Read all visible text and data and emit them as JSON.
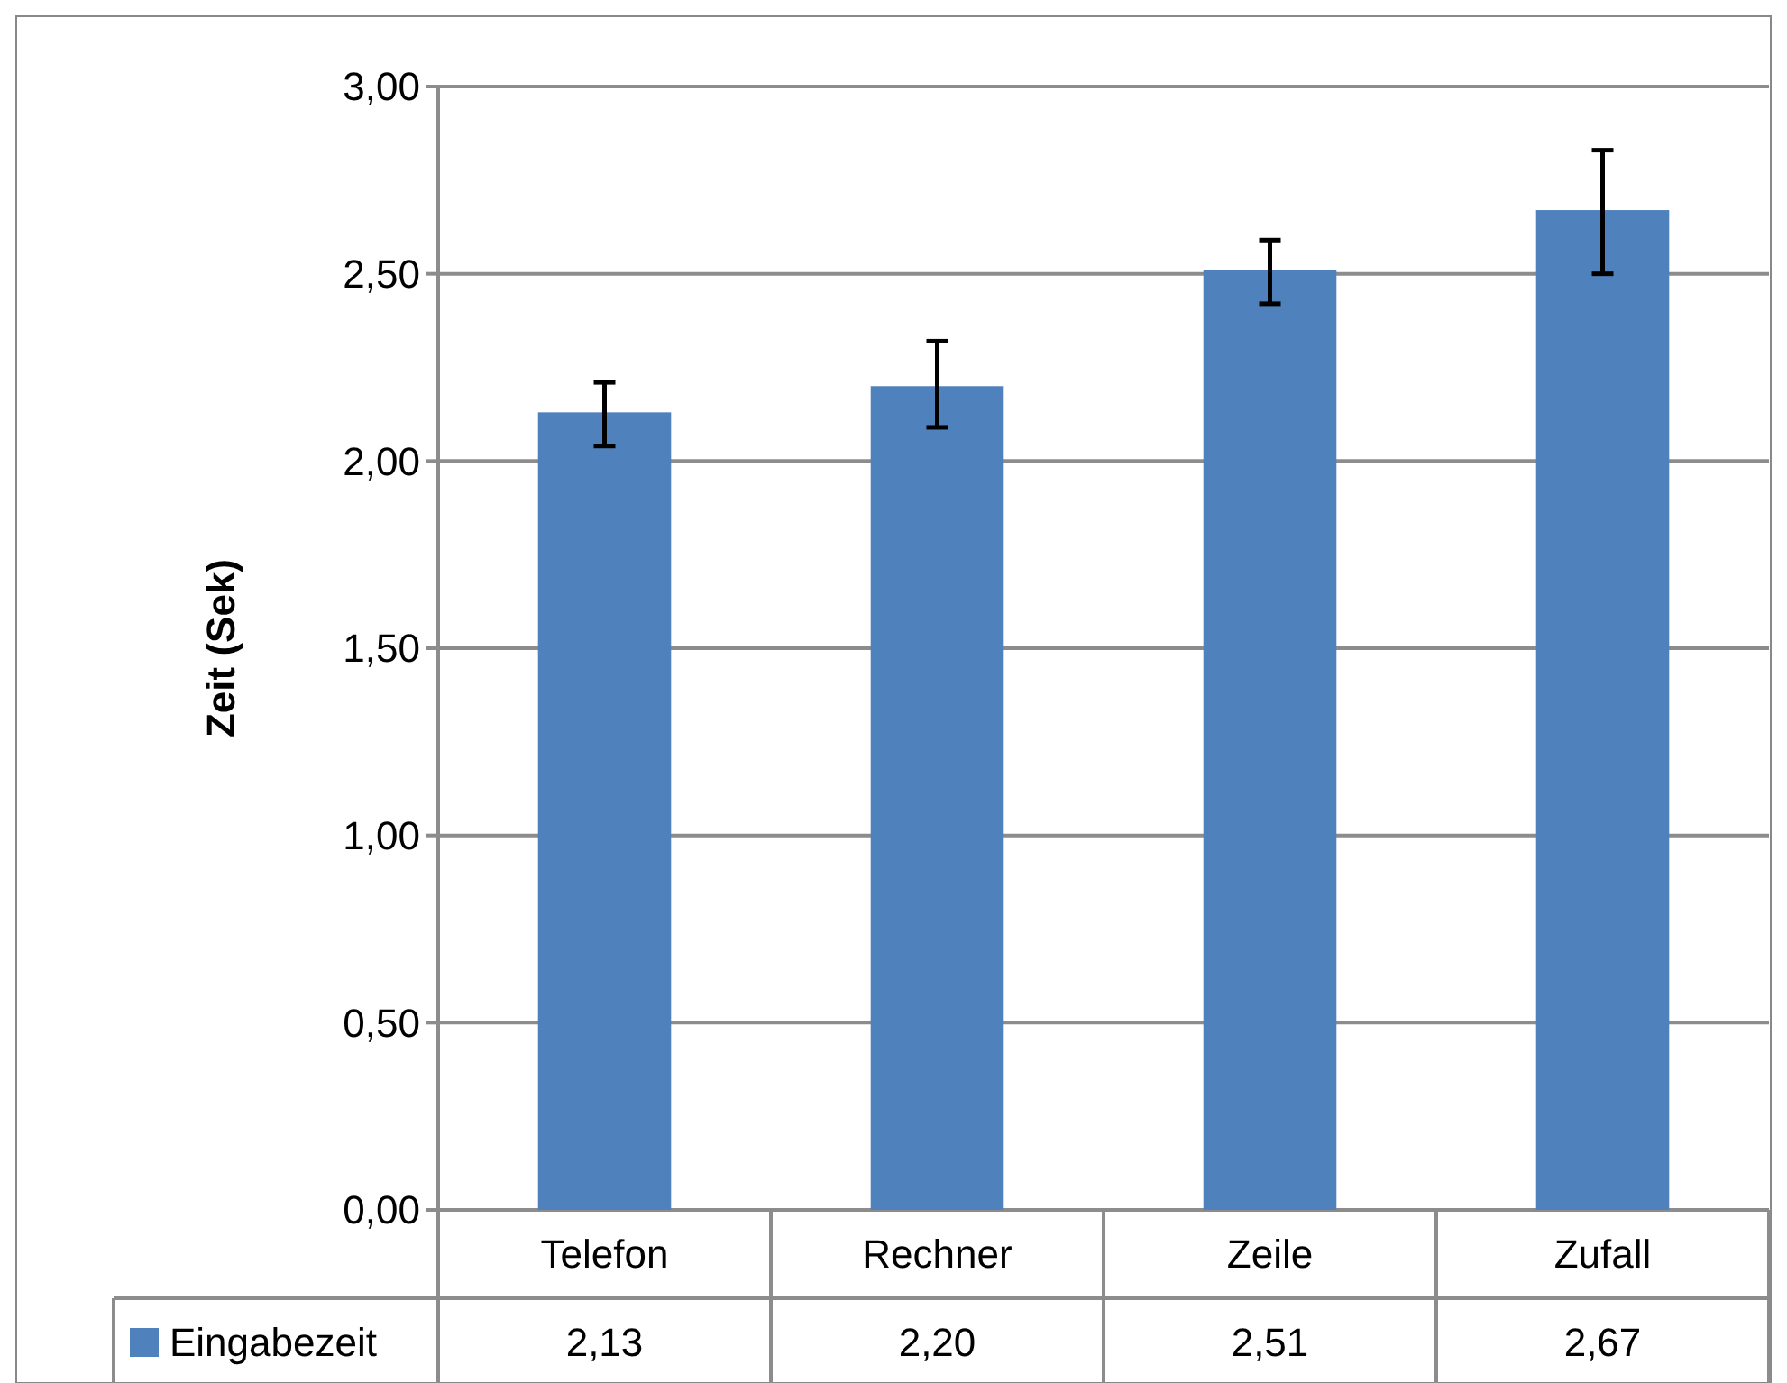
{
  "chart_data": {
    "type": "bar",
    "ylabel": "Zeit (Sek)",
    "categories": [
      "Telefon",
      "Rechner",
      "Zeile",
      "Zufall"
    ],
    "series": [
      {
        "name": "Eingabezeit",
        "color": "#4f81bd",
        "values": [
          2.13,
          2.2,
          2.51,
          2.67
        ],
        "value_labels": [
          "2,13",
          "2,20",
          "2,51",
          "2,67"
        ],
        "errors": [
          [
            2.04,
            2.21
          ],
          [
            2.09,
            2.32
          ],
          [
            2.42,
            2.59
          ],
          [
            2.5,
            2.83
          ]
        ]
      }
    ],
    "ylim": [
      0,
      3
    ],
    "yticks": [
      {
        "value": 0,
        "label": "0,00"
      },
      {
        "value": 0.5,
        "label": "0,50"
      },
      {
        "value": 1,
        "label": "1,00"
      },
      {
        "value": 1.5,
        "label": "1,50"
      },
      {
        "value": 2,
        "label": "2,00"
      },
      {
        "value": 2.5,
        "label": "2,50"
      },
      {
        "value": 3,
        "label": "3,00"
      }
    ],
    "grid": "y",
    "legend": "bottom"
  }
}
